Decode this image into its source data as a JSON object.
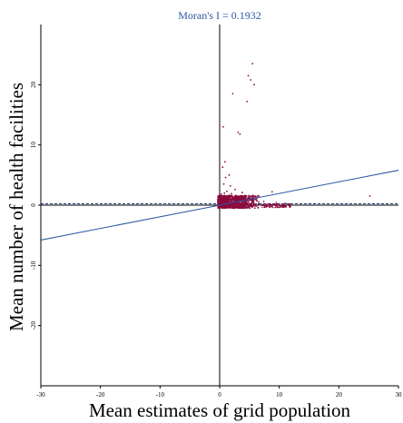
{
  "chart_data": {
    "type": "scatter",
    "title": "Moran's I = 0.1932",
    "xlabel": "Mean estimates of grid population",
    "ylabel": "Mean number of health facilities",
    "xlim": [
      -30,
      30
    ],
    "ylim": [
      -30,
      30
    ],
    "x_ticks": [
      "-30",
      "-20",
      "-10",
      "0",
      "10",
      "20",
      "30"
    ],
    "y_ticks": [
      "20",
      "10",
      "0",
      "-10",
      "-20"
    ],
    "y_tick_values": [
      20,
      10,
      0,
      -10,
      -20
    ],
    "x_tick_values": [
      -30,
      -20,
      -10,
      0,
      10,
      20,
      30
    ],
    "regression_line": {
      "slope": 0.1932,
      "intercept": 0
    },
    "reference_lines": {
      "vertical_x": 0,
      "horizontal_y": 0,
      "dashed_y": 0
    },
    "points": [
      [
        5.5,
        23.5
      ],
      [
        4.8,
        21.5
      ],
      [
        5.2,
        20.8
      ],
      [
        2.2,
        18.5
      ],
      [
        5.8,
        20.0
      ],
      [
        4.6,
        17.2
      ],
      [
        3.1,
        12.1
      ],
      [
        3.4,
        11.8
      ],
      [
        0.6,
        13.0
      ],
      [
        0.9,
        7.2
      ],
      [
        0.5,
        6.3
      ],
      [
        1.0,
        4.6
      ],
      [
        1.6,
        5.0
      ],
      [
        1.8,
        3.2
      ],
      [
        25.2,
        1.5
      ],
      [
        0.7,
        3.5
      ],
      [
        2.6,
        2.6
      ],
      [
        3.8,
        2.1
      ],
      [
        6.6,
        1.5
      ],
      [
        8.8,
        2.2
      ],
      [
        0.3,
        1.8
      ],
      [
        0.8,
        2.0
      ],
      [
        1.2,
        2.3
      ],
      [
        2.0,
        1.9
      ],
      [
        4.2,
        1.4
      ],
      [
        5.0,
        1.0
      ],
      [
        6.2,
        0.9
      ],
      [
        7.4,
        0.6
      ],
      [
        9.5,
        0.4
      ],
      [
        11.0,
        0.3
      ]
    ],
    "cluster": {
      "x_min": -0.3,
      "x_max": 7.0,
      "y_min": -0.5,
      "y_max": 1.6,
      "count": 900,
      "tail_x_max": 12.0,
      "tail_count": 120
    },
    "colors": {
      "points": "#8b0a3c",
      "regression": "#2c55a0",
      "title": "#2c55a0",
      "axis": "#000000",
      "dashed": "#1d3f7a"
    }
  }
}
